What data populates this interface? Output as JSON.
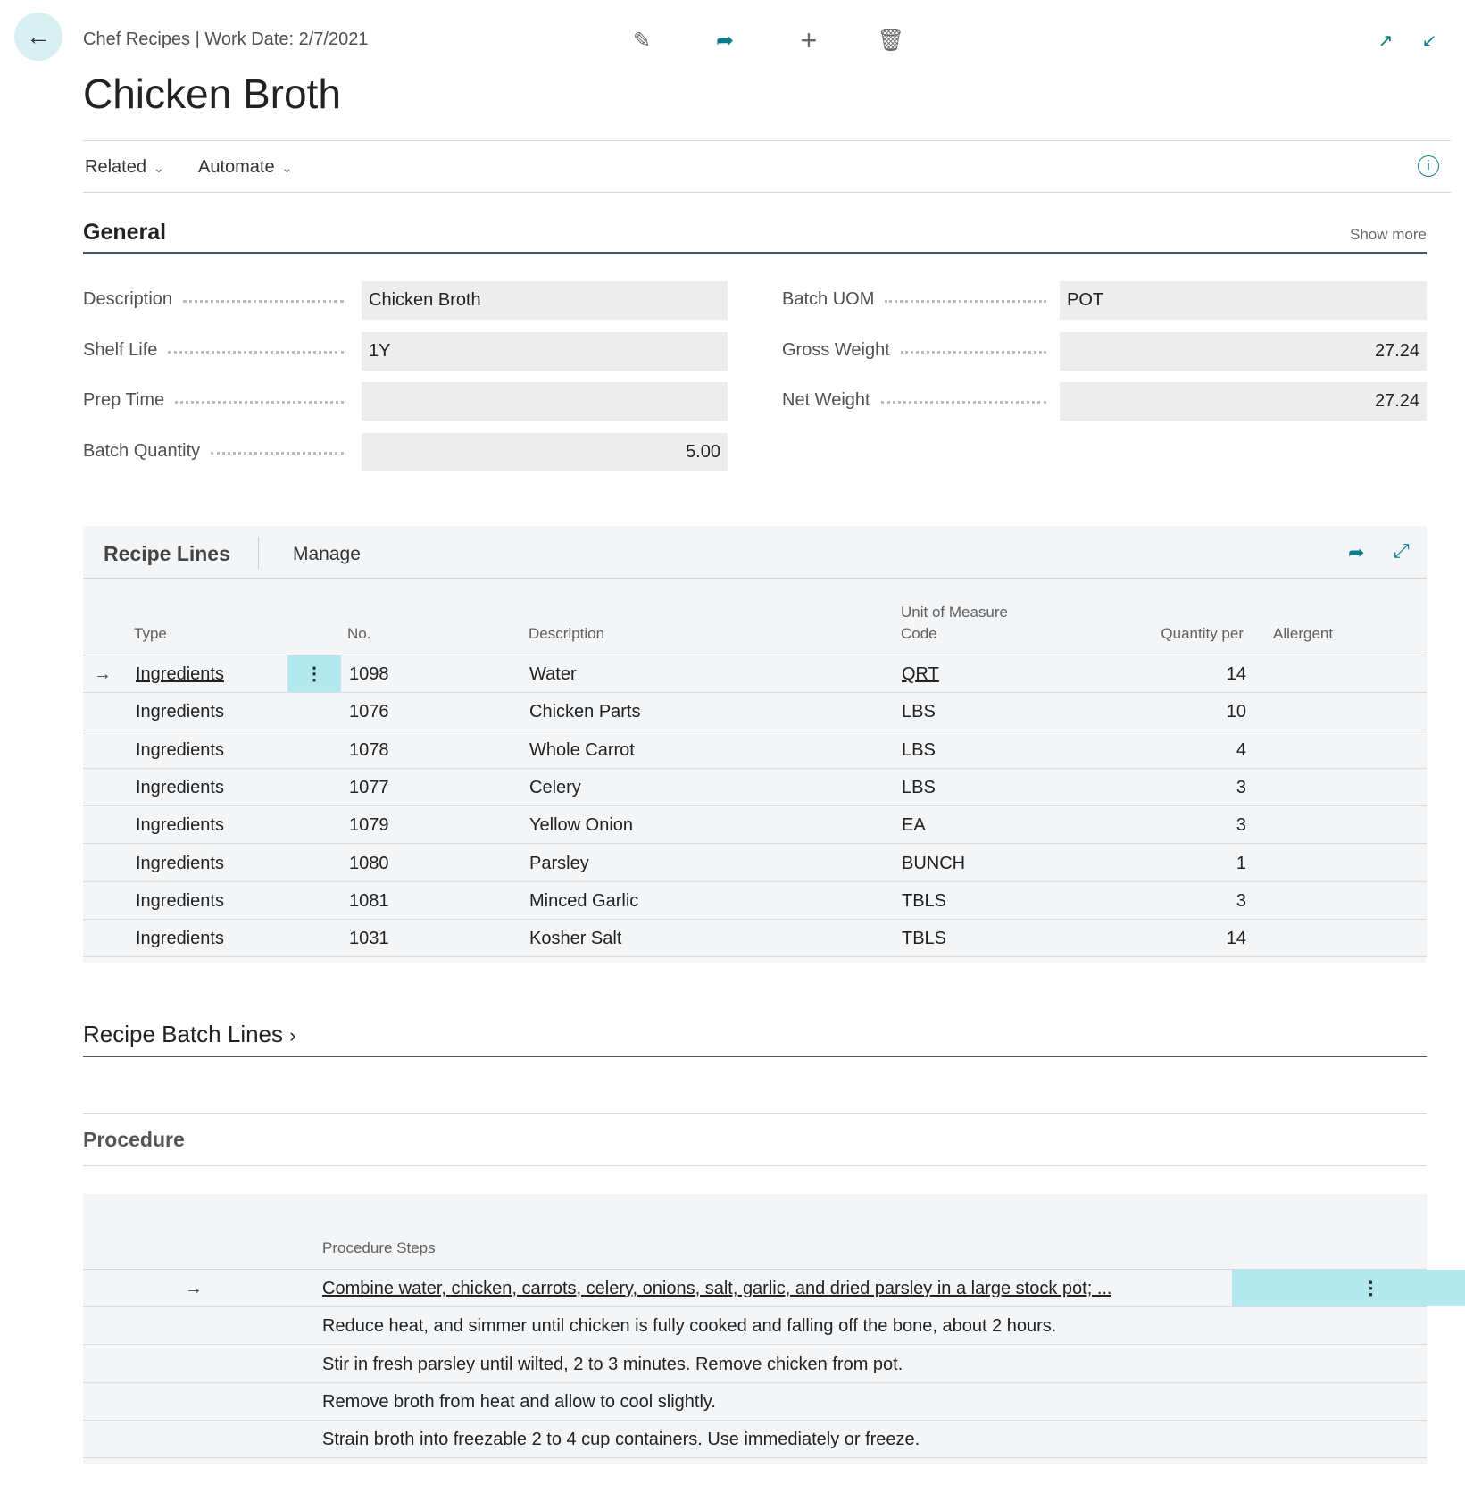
{
  "header": {
    "breadcrumb": "Chef Recipes | Work Date: 2/7/2021",
    "title": "Chicken Broth"
  },
  "menu": {
    "related": "Related",
    "automate": "Automate"
  },
  "general": {
    "title": "General",
    "show_more": "Show more",
    "fields_left": [
      {
        "label": "Description",
        "value": "Chicken Broth",
        "align": "left"
      },
      {
        "label": "Shelf Life",
        "value": "1Y",
        "align": "left"
      },
      {
        "label": "Prep Time",
        "value": "",
        "align": "left"
      },
      {
        "label": "Batch Quantity",
        "value": "5.00",
        "align": "right"
      }
    ],
    "fields_right": [
      {
        "label": "Batch UOM",
        "value": "POT",
        "align": "left"
      },
      {
        "label": "Gross Weight",
        "value": "27.24",
        "align": "right"
      },
      {
        "label": "Net Weight",
        "value": "27.24",
        "align": "right"
      }
    ]
  },
  "recipe_lines": {
    "title": "Recipe Lines",
    "manage": "Manage",
    "columns": {
      "type": "Type",
      "no": "No.",
      "description": "Description",
      "uom": "Unit of Measure Code",
      "qty": "Quantity per",
      "allergent": "Allergent"
    },
    "rows": [
      {
        "type": "Ingredients",
        "no": "1098",
        "description": "Water",
        "uom": "QRT",
        "qty": "14"
      },
      {
        "type": "Ingredients",
        "no": "1076",
        "description": "Chicken Parts",
        "uom": "LBS",
        "qty": "10"
      },
      {
        "type": "Ingredients",
        "no": "1078",
        "description": "Whole Carrot",
        "uom": "LBS",
        "qty": "4"
      },
      {
        "type": "Ingredients",
        "no": "1077",
        "description": "Celery",
        "uom": "LBS",
        "qty": "3"
      },
      {
        "type": "Ingredients",
        "no": "1079",
        "description": "Yellow Onion",
        "uom": "EA",
        "qty": "3"
      },
      {
        "type": "Ingredients",
        "no": "1080",
        "description": "Parsley",
        "uom": "BUNCH",
        "qty": "1"
      },
      {
        "type": "Ingredients",
        "no": "1081",
        "description": "Minced Garlic",
        "uom": "TBLS",
        "qty": "3"
      },
      {
        "type": "Ingredients",
        "no": "1031",
        "description": "Kosher Salt",
        "uom": "TBLS",
        "qty": "14"
      }
    ]
  },
  "batch_lines": {
    "title": "Recipe Batch Lines"
  },
  "procedure": {
    "title": "Procedure",
    "column": "Procedure Steps",
    "steps": [
      "Combine water, chicken, carrots, celery, onions, salt, garlic, and dried parsley in a large stock pot; ...",
      "Reduce heat, and simmer until chicken is fully cooked and falling off the bone, about 2 hours.",
      "Stir in fresh parsley until wilted, 2 to 3 minutes.  Remove chicken from pot.",
      "Remove broth from heat and allow to cool slightly.",
      "Strain broth into freezable 2 to 4 cup containers. Use immediately or freeze."
    ]
  },
  "colors": {
    "accent": "#0a7c8c",
    "selected_cell": "#b2e8ee",
    "panel": "#f4f5f6"
  }
}
